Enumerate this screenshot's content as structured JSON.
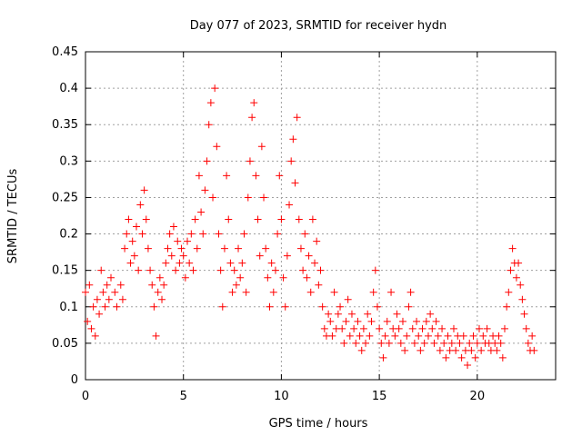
{
  "chart_data": {
    "type": "scatter",
    "title": "Day 077 of 2023, SRMTID for receiver hydn",
    "xlabel": "GPS time / hours",
    "ylabel": "SRMTID / TECUs",
    "xlim": [
      0,
      24
    ],
    "ylim": [
      0,
      0.45
    ],
    "x_ticks": [
      0,
      5,
      10,
      15,
      20
    ],
    "x_tick_labels": [
      "0",
      "5",
      "10",
      "15",
      "20"
    ],
    "y_ticks": [
      0,
      0.05,
      0.1,
      0.15,
      0.2,
      0.25,
      0.3,
      0.35,
      0.4,
      0.45
    ],
    "y_tick_labels": [
      "0",
      "0.05",
      "0.1",
      "0.15",
      "0.2",
      "0.25",
      "0.3",
      "0.35",
      "0.4",
      "0.45"
    ],
    "grid": true,
    "marker": "+",
    "color": "#ff0000",
    "series": [
      {
        "name": "SRMTID",
        "points": [
          [
            0.0,
            0.12
          ],
          [
            0.1,
            0.08
          ],
          [
            0.2,
            0.13
          ],
          [
            0.3,
            0.07
          ],
          [
            0.4,
            0.1
          ],
          [
            0.5,
            0.06
          ],
          [
            0.6,
            0.11
          ],
          [
            0.7,
            0.09
          ],
          [
            0.8,
            0.15
          ],
          [
            0.9,
            0.12
          ],
          [
            1.0,
            0.1
          ],
          [
            1.1,
            0.13
          ],
          [
            1.2,
            0.11
          ],
          [
            1.3,
            0.14
          ],
          [
            1.5,
            0.12
          ],
          [
            1.6,
            0.1
          ],
          [
            1.8,
            0.13
          ],
          [
            1.9,
            0.11
          ],
          [
            2.0,
            0.18
          ],
          [
            2.1,
            0.2
          ],
          [
            2.2,
            0.22
          ],
          [
            2.3,
            0.16
          ],
          [
            2.4,
            0.19
          ],
          [
            2.5,
            0.17
          ],
          [
            2.6,
            0.21
          ],
          [
            2.7,
            0.15
          ],
          [
            2.8,
            0.24
          ],
          [
            2.9,
            0.2
          ],
          [
            3.0,
            0.26
          ],
          [
            3.1,
            0.22
          ],
          [
            3.2,
            0.18
          ],
          [
            3.3,
            0.15
          ],
          [
            3.4,
            0.13
          ],
          [
            3.5,
            0.1
          ],
          [
            3.6,
            0.06
          ],
          [
            3.7,
            0.12
          ],
          [
            3.8,
            0.14
          ],
          [
            3.9,
            0.11
          ],
          [
            4.0,
            0.13
          ],
          [
            4.1,
            0.16
          ],
          [
            4.2,
            0.18
          ],
          [
            4.3,
            0.2
          ],
          [
            4.4,
            0.17
          ],
          [
            4.5,
            0.21
          ],
          [
            4.6,
            0.15
          ],
          [
            4.7,
            0.19
          ],
          [
            4.8,
            0.16
          ],
          [
            4.9,
            0.18
          ],
          [
            5.0,
            0.17
          ],
          [
            5.1,
            0.14
          ],
          [
            5.2,
            0.19
          ],
          [
            5.3,
            0.16
          ],
          [
            5.4,
            0.2
          ],
          [
            5.5,
            0.15
          ],
          [
            5.6,
            0.22
          ],
          [
            5.7,
            0.18
          ],
          [
            5.8,
            0.28
          ],
          [
            5.9,
            0.23
          ],
          [
            6.0,
            0.2
          ],
          [
            6.1,
            0.26
          ],
          [
            6.2,
            0.3
          ],
          [
            6.3,
            0.35
          ],
          [
            6.4,
            0.38
          ],
          [
            6.5,
            0.25
          ],
          [
            6.6,
            0.4
          ],
          [
            6.7,
            0.32
          ],
          [
            6.8,
            0.2
          ],
          [
            6.9,
            0.15
          ],
          [
            7.0,
            0.1
          ],
          [
            7.1,
            0.18
          ],
          [
            7.2,
            0.28
          ],
          [
            7.3,
            0.22
          ],
          [
            7.4,
            0.16
          ],
          [
            7.5,
            0.12
          ],
          [
            7.6,
            0.15
          ],
          [
            7.7,
            0.13
          ],
          [
            7.8,
            0.18
          ],
          [
            7.9,
            0.14
          ],
          [
            8.0,
            0.16
          ],
          [
            8.1,
            0.2
          ],
          [
            8.2,
            0.12
          ],
          [
            8.3,
            0.25
          ],
          [
            8.4,
            0.3
          ],
          [
            8.5,
            0.36
          ],
          [
            8.6,
            0.38
          ],
          [
            8.7,
            0.28
          ],
          [
            8.8,
            0.22
          ],
          [
            8.9,
            0.17
          ],
          [
            9.0,
            0.32
          ],
          [
            9.1,
            0.25
          ],
          [
            9.2,
            0.18
          ],
          [
            9.3,
            0.14
          ],
          [
            9.4,
            0.1
          ],
          [
            9.5,
            0.16
          ],
          [
            9.6,
            0.12
          ],
          [
            9.7,
            0.15
          ],
          [
            9.8,
            0.2
          ],
          [
            9.9,
            0.28
          ],
          [
            10.0,
            0.22
          ],
          [
            10.1,
            0.14
          ],
          [
            10.2,
            0.1
          ],
          [
            10.3,
            0.17
          ],
          [
            10.4,
            0.24
          ],
          [
            10.5,
            0.3
          ],
          [
            10.6,
            0.33
          ],
          [
            10.7,
            0.27
          ],
          [
            10.8,
            0.36
          ],
          [
            10.9,
            0.22
          ],
          [
            11.0,
            0.18
          ],
          [
            11.1,
            0.15
          ],
          [
            11.2,
            0.2
          ],
          [
            11.3,
            0.14
          ],
          [
            11.4,
            0.17
          ],
          [
            11.5,
            0.12
          ],
          [
            11.6,
            0.22
          ],
          [
            11.7,
            0.16
          ],
          [
            11.8,
            0.19
          ],
          [
            11.9,
            0.13
          ],
          [
            12.0,
            0.15
          ],
          [
            12.1,
            0.1
          ],
          [
            12.2,
            0.07
          ],
          [
            12.3,
            0.06
          ],
          [
            12.4,
            0.09
          ],
          [
            12.5,
            0.08
          ],
          [
            12.6,
            0.06
          ],
          [
            12.7,
            0.12
          ],
          [
            12.8,
            0.07
          ],
          [
            12.9,
            0.09
          ],
          [
            13.0,
            0.1
          ],
          [
            13.1,
            0.07
          ],
          [
            13.2,
            0.05
          ],
          [
            13.3,
            0.08
          ],
          [
            13.4,
            0.11
          ],
          [
            13.5,
            0.06
          ],
          [
            13.6,
            0.09
          ],
          [
            13.7,
            0.07
          ],
          [
            13.8,
            0.05
          ],
          [
            13.9,
            0.08
          ],
          [
            14.0,
            0.06
          ],
          [
            14.1,
            0.04
          ],
          [
            14.2,
            0.07
          ],
          [
            14.3,
            0.05
          ],
          [
            14.4,
            0.09
          ],
          [
            14.5,
            0.06
          ],
          [
            14.6,
            0.08
          ],
          [
            14.7,
            0.12
          ],
          [
            14.8,
            0.15
          ],
          [
            14.9,
            0.1
          ],
          [
            15.0,
            0.07
          ],
          [
            15.1,
            0.05
          ],
          [
            15.2,
            0.03
          ],
          [
            15.3,
            0.06
          ],
          [
            15.4,
            0.08
          ],
          [
            15.5,
            0.05
          ],
          [
            15.6,
            0.12
          ],
          [
            15.7,
            0.07
          ],
          [
            15.8,
            0.06
          ],
          [
            15.9,
            0.09
          ],
          [
            16.0,
            0.07
          ],
          [
            16.1,
            0.05
          ],
          [
            16.2,
            0.08
          ],
          [
            16.3,
            0.04
          ],
          [
            16.4,
            0.06
          ],
          [
            16.5,
            0.1
          ],
          [
            16.6,
            0.12
          ],
          [
            16.7,
            0.07
          ],
          [
            16.8,
            0.05
          ],
          [
            16.9,
            0.08
          ],
          [
            17.0,
            0.06
          ],
          [
            17.1,
            0.04
          ],
          [
            17.2,
            0.07
          ],
          [
            17.3,
            0.05
          ],
          [
            17.4,
            0.08
          ],
          [
            17.5,
            0.06
          ],
          [
            17.6,
            0.09
          ],
          [
            17.7,
            0.07
          ],
          [
            17.8,
            0.05
          ],
          [
            17.9,
            0.08
          ],
          [
            18.0,
            0.06
          ],
          [
            18.1,
            0.04
          ],
          [
            18.2,
            0.07
          ],
          [
            18.3,
            0.05
          ],
          [
            18.4,
            0.03
          ],
          [
            18.5,
            0.06
          ],
          [
            18.6,
            0.04
          ],
          [
            18.7,
            0.05
          ],
          [
            18.8,
            0.07
          ],
          [
            18.9,
            0.04
          ],
          [
            19.0,
            0.06
          ],
          [
            19.1,
            0.05
          ],
          [
            19.2,
            0.03
          ],
          [
            19.3,
            0.06
          ],
          [
            19.4,
            0.04
          ],
          [
            19.5,
            0.02
          ],
          [
            19.6,
            0.05
          ],
          [
            19.7,
            0.04
          ],
          [
            19.8,
            0.06
          ],
          [
            19.9,
            0.03
          ],
          [
            20.0,
            0.05
          ],
          [
            20.1,
            0.07
          ],
          [
            20.2,
            0.04
          ],
          [
            20.3,
            0.06
          ],
          [
            20.4,
            0.05
          ],
          [
            20.5,
            0.07
          ],
          [
            20.6,
            0.05
          ],
          [
            20.7,
            0.04
          ],
          [
            20.8,
            0.06
          ],
          [
            20.9,
            0.05
          ],
          [
            21.0,
            0.04
          ],
          [
            21.1,
            0.06
          ],
          [
            21.2,
            0.05
          ],
          [
            21.3,
            0.03
          ],
          [
            21.4,
            0.07
          ],
          [
            21.5,
            0.1
          ],
          [
            21.6,
            0.12
          ],
          [
            21.7,
            0.15
          ],
          [
            21.8,
            0.18
          ],
          [
            21.9,
            0.16
          ],
          [
            22.0,
            0.14
          ],
          [
            22.1,
            0.16
          ],
          [
            22.2,
            0.13
          ],
          [
            22.3,
            0.11
          ],
          [
            22.4,
            0.09
          ],
          [
            22.5,
            0.07
          ],
          [
            22.6,
            0.05
          ],
          [
            22.7,
            0.04
          ],
          [
            22.8,
            0.06
          ],
          [
            22.9,
            0.04
          ]
        ]
      }
    ]
  }
}
